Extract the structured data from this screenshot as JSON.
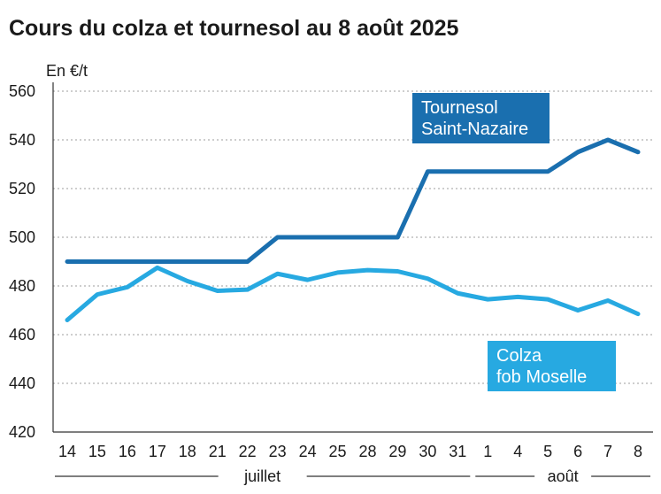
{
  "chart_data": {
    "type": "line",
    "title": "Cours du colza et tournesol au 8 août 2025",
    "ylabel": "En €/t",
    "ylim": [
      420,
      560
    ],
    "yticks": [
      420,
      440,
      460,
      480,
      500,
      520,
      540,
      560
    ],
    "grid": true,
    "categories": [
      "14",
      "15",
      "16",
      "17",
      "18",
      "21",
      "22",
      "23",
      "24",
      "25",
      "28",
      "29",
      "30",
      "31",
      "1",
      "4",
      "5",
      "6",
      "7",
      "8"
    ],
    "months": [
      {
        "label": "juillet",
        "from": 0,
        "to": 13
      },
      {
        "label": "août",
        "from": 14,
        "to": 19
      }
    ],
    "series": [
      {
        "name": "Tournesol Saint-Nazaire",
        "label_lines": [
          "Tournesol",
          "Saint-Nazaire"
        ],
        "color": "#1a6faf",
        "step": true,
        "values": [
          490,
          490,
          490,
          490,
          490,
          490,
          490,
          500,
          500,
          500,
          500,
          500,
          527,
          527,
          527,
          527,
          527,
          535,
          540,
          535
        ]
      },
      {
        "name": "Colza fob Moselle",
        "label_lines": [
          "Colza",
          "fob Moselle"
        ],
        "color": "#27a9e1",
        "step": false,
        "values": [
          466,
          476.5,
          479.5,
          487.5,
          482,
          478,
          478.5,
          485,
          482.5,
          485.5,
          486.5,
          486,
          483,
          477,
          474.5,
          475.5,
          474.5,
          470,
          474,
          468.5
        ]
      }
    ]
  }
}
